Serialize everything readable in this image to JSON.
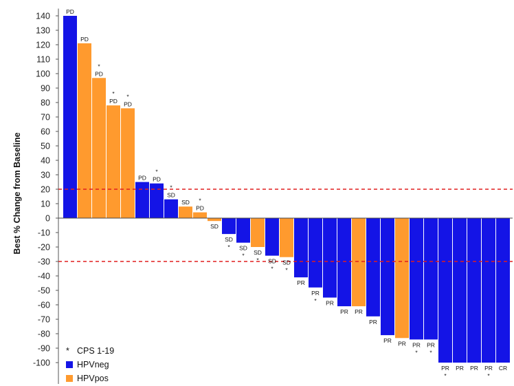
{
  "chart_data": {
    "type": "bar",
    "ylabel": "Best % Change from Baseline",
    "ylim": [
      -110,
      145
    ],
    "yticks": [
      140,
      130,
      120,
      110,
      100,
      90,
      80,
      70,
      60,
      50,
      40,
      30,
      20,
      10,
      0,
      -10,
      -20,
      -30,
      -40,
      -50,
      -60,
      -70,
      -80,
      -90,
      -100
    ],
    "reference_lines": [
      20,
      -30
    ],
    "colors": {
      "HPVneg": "#1414e6",
      "HPVpos": "#ff9a2e",
      "reference": "#e01e1e"
    },
    "legend": [
      {
        "marker": "*",
        "label": "CPS 1-19"
      },
      {
        "key": "HPVneg",
        "label": "HPVneg"
      },
      {
        "key": "HPVpos",
        "label": "HPVpos"
      }
    ],
    "bars": [
      {
        "value": 140,
        "group": "HPVneg",
        "response": "PD",
        "star": false
      },
      {
        "value": 121,
        "group": "HPVpos",
        "response": "PD",
        "star": false
      },
      {
        "value": 97,
        "group": "HPVpos",
        "response": "PD",
        "star": true
      },
      {
        "value": 78,
        "group": "HPVpos",
        "response": "PD",
        "star": true
      },
      {
        "value": 76,
        "group": "HPVpos",
        "response": "PD",
        "star": true
      },
      {
        "value": 25,
        "group": "HPVneg",
        "response": "PD",
        "star": false
      },
      {
        "value": 24,
        "group": "HPVneg",
        "response": "PD",
        "star": true
      },
      {
        "value": 13,
        "group": "HPVneg",
        "response": "SD",
        "star": true
      },
      {
        "value": 8,
        "group": "HPVpos",
        "response": "SD",
        "star": false
      },
      {
        "value": 4,
        "group": "HPVpos",
        "response": "PD",
        "star": true
      },
      {
        "value": -2,
        "group": "HPVpos",
        "response": "SD",
        "star": false
      },
      {
        "value": -11,
        "group": "HPVneg",
        "response": "SD",
        "star": true
      },
      {
        "value": -17,
        "group": "HPVneg",
        "response": "SD",
        "star": true
      },
      {
        "value": -20,
        "group": "HPVpos",
        "response": "SD",
        "star": true
      },
      {
        "value": -26,
        "group": "HPVneg",
        "response": "SD",
        "star": true
      },
      {
        "value": -27,
        "group": "HPVpos",
        "response": "SD",
        "star": true
      },
      {
        "value": -41,
        "group": "HPVneg",
        "response": "PR",
        "star": false
      },
      {
        "value": -48,
        "group": "HPVneg",
        "response": "PR",
        "star": true
      },
      {
        "value": -55,
        "group": "HPVneg",
        "response": "PR",
        "star": false
      },
      {
        "value": -61,
        "group": "HPVneg",
        "response": "PR",
        "star": false
      },
      {
        "value": -61,
        "group": "HPVpos",
        "response": "PR",
        "star": false
      },
      {
        "value": -68,
        "group": "HPVneg",
        "response": "PR",
        "star": false
      },
      {
        "value": -81,
        "group": "HPVneg",
        "response": "PR",
        "star": false
      },
      {
        "value": -83,
        "group": "HPVpos",
        "response": "PR",
        "star": false
      },
      {
        "value": -84,
        "group": "HPVneg",
        "response": "PR",
        "star": true
      },
      {
        "value": -84,
        "group": "HPVneg",
        "response": "PR",
        "star": true
      },
      {
        "value": -100,
        "group": "HPVneg",
        "response": "PR",
        "star": true
      },
      {
        "value": -100,
        "group": "HPVneg",
        "response": "PR",
        "star": false
      },
      {
        "value": -100,
        "group": "HPVneg",
        "response": "PR",
        "star": false
      },
      {
        "value": -100,
        "group": "HPVneg",
        "response": "PR",
        "star": true
      },
      {
        "value": -100,
        "group": "HPVneg",
        "response": "CR",
        "star": false
      }
    ]
  }
}
